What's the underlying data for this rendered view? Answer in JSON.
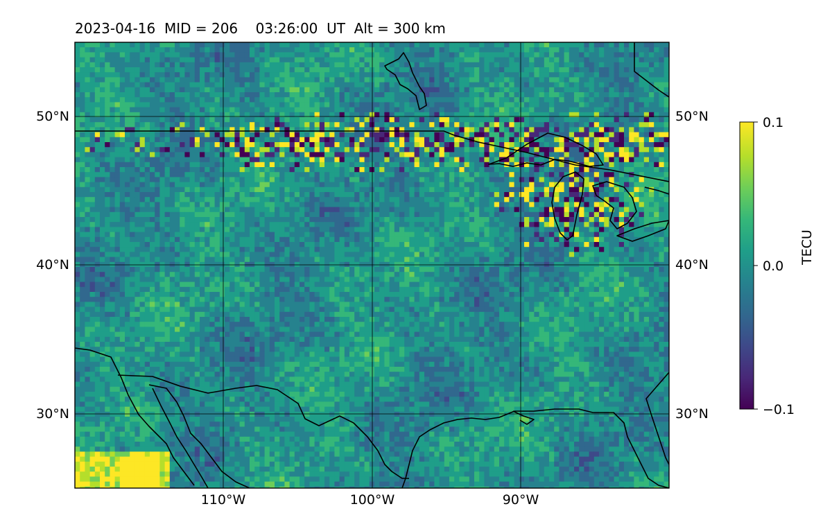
{
  "title": "2023-04-16  MID = 206    03:26:00  UT  Alt = 300 km",
  "map": {
    "lon_range": [
      -120,
      -80
    ],
    "lat_range": [
      25,
      55
    ],
    "lat_ticks": [
      {
        "value": 50,
        "label": "50°N"
      },
      {
        "value": 40,
        "label": "40°N"
      },
      {
        "value": 30,
        "label": "30°N"
      }
    ],
    "lon_ticks": [
      {
        "value": -110,
        "label": "110°W"
      },
      {
        "value": -100,
        "label": "100°W"
      },
      {
        "value": -90,
        "label": "90°W"
      }
    ],
    "colormap": "viridis",
    "land_borders_color": "#000000",
    "gridline_color": "#000000"
  },
  "colorbar": {
    "label": "TECU",
    "vmin": -0.1,
    "vmax": 0.1,
    "ticks": [
      {
        "value": 0.1,
        "label": "0.1"
      },
      {
        "value": 0.0,
        "label": "0.0"
      },
      {
        "value": -0.1,
        "label": "−0.1"
      }
    ],
    "colors": [
      "#440154",
      "#482878",
      "#3e4989",
      "#31688e",
      "#26828e",
      "#1f9e89",
      "#35b779",
      "#6ece58",
      "#b5de2b",
      "#fde725"
    ]
  }
}
